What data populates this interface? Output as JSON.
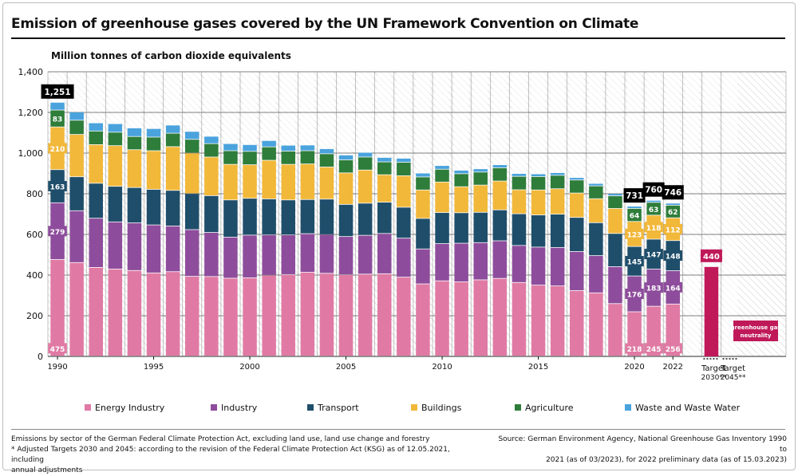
{
  "title": "Emission of greenhouse gases covered by the UN Framework Convention on Climate",
  "subtitle": "Million tonnes of carbon dioxide equivalents",
  "notes": {
    "left_line1": "Emissions by sector of the German Federal Climate Protection Act, excluding land use, land use change and forestry",
    "left_line2": "* Adjusted Targets 2030 and 2045: according to the revision of the Federal Climate Protection Act (KSG) as of 12.05.2021, including",
    "left_line3": "annual adjustments",
    "right_line1": "Source: German Environment Agency, National Greenhouse Gas Inventory  1990 to",
    "right_line2": "2021 (as of 03/2023), for 2022 preliminary data (as of 15.03.2023)"
  },
  "chart_data": {
    "type": "bar",
    "stacked": true,
    "ylim": [
      0,
      1400
    ],
    "yticks": [
      "0",
      "200",
      "400",
      "600",
      "800",
      "1,000",
      "1,200",
      "1,400"
    ],
    "x": [
      1990,
      1991,
      1992,
      1993,
      1994,
      1995,
      1996,
      1997,
      1998,
      1999,
      2000,
      2001,
      2002,
      2003,
      2004,
      2005,
      2006,
      2007,
      2008,
      2009,
      2010,
      2011,
      2012,
      2013,
      2014,
      2015,
      2016,
      2017,
      2018,
      2019,
      2020,
      2021,
      2022
    ],
    "xtick_labels": [
      "1990",
      "1995",
      "2000",
      "2005",
      "2010",
      "2015",
      "2020",
      "2022"
    ],
    "series": [
      {
        "name": "Energy Industry",
        "color": "#e07aa4",
        "values": [
          475,
          460,
          436,
          428,
          421,
          409,
          415,
          392,
          391,
          383,
          385,
          398,
          401,
          412,
          407,
          400,
          403,
          405,
          388,
          355,
          370,
          365,
          375,
          382,
          362,
          349,
          345,
          322,
          311,
          258,
          218,
          245,
          256
        ]
      },
      {
        "name": "Industry",
        "color": "#8e4d9c",
        "values": [
          279,
          255,
          242,
          232,
          234,
          236,
          225,
          230,
          217,
          202,
          210,
          198,
          195,
          190,
          191,
          188,
          191,
          198,
          192,
          172,
          183,
          190,
          183,
          185,
          182,
          187,
          189,
          192,
          183,
          182,
          176,
          183,
          164
        ]
      },
      {
        "name": "Transport",
        "color": "#1f4e6b",
        "values": [
          163,
          167,
          172,
          175,
          174,
          175,
          175,
          177,
          181,
          183,
          181,
          177,
          172,
          168,
          174,
          158,
          158,
          154,
          152,
          150,
          153,
          150,
          149,
          152,
          156,
          158,
          164,
          168,
          162,
          163,
          145,
          147,
          148
        ]
      },
      {
        "name": "Buildings",
        "color": "#f2b83a",
        "values": [
          210,
          208,
          190,
          200,
          186,
          190,
          215,
          200,
          190,
          175,
          165,
          190,
          175,
          175,
          158,
          155,
          163,
          135,
          155,
          140,
          150,
          128,
          134,
          142,
          118,
          123,
          125,
          120,
          118,
          123,
          123,
          118,
          112
        ]
      },
      {
        "name": "Agriculture",
        "color": "#2e7d3a",
        "values": [
          83,
          70,
          67,
          66,
          65,
          67,
          66,
          67,
          66,
          67,
          66,
          66,
          65,
          65,
          65,
          64,
          64,
          63,
          66,
          64,
          63,
          64,
          64,
          65,
          66,
          66,
          66,
          64,
          63,
          62,
          64,
          63,
          62
        ]
      },
      {
        "name": "Waste and Waste Water",
        "color": "#4aa3dd",
        "values": [
          38,
          40,
          40,
          42,
          42,
          42,
          40,
          39,
          36,
          35,
          33,
          31,
          29,
          28,
          25,
          24,
          23,
          22,
          20,
          19,
          18,
          17,
          16,
          15,
          14,
          13,
          13,
          12,
          12,
          11,
          11,
          10,
          10
        ]
      }
    ],
    "totals": [
      {
        "x": 1990,
        "label": "1,251"
      },
      {
        "x": 2020,
        "label": "731"
      },
      {
        "x": 2021,
        "label": "760"
      },
      {
        "x": 2022,
        "label": "746"
      }
    ],
    "value_labels": [
      {
        "x": 1990,
        "labels": [
          "475",
          "279",
          "163",
          "210",
          "83"
        ]
      },
      {
        "x": 2020,
        "labels": [
          "218",
          "176",
          "145",
          "123",
          "64"
        ]
      },
      {
        "x": 2021,
        "labels": [
          "245",
          "183",
          "147",
          "118",
          "63"
        ]
      },
      {
        "x": 2022,
        "labels": [
          "256",
          "164",
          "148",
          "112",
          "62"
        ]
      }
    ],
    "targets": [
      {
        "label": "Target 2030**",
        "line1": "Target",
        "line2": "2030**",
        "value": 440,
        "value_label": "440",
        "color": "#c0195a"
      },
      {
        "label": "Target 2045**",
        "line1": "Target",
        "line2": "2045**",
        "value": 0,
        "value_label": "greenhouse gas neutrality",
        "value_line1": "greenhouse gas",
        "value_line2": "neutrality",
        "color": "#c0195a"
      }
    ]
  }
}
